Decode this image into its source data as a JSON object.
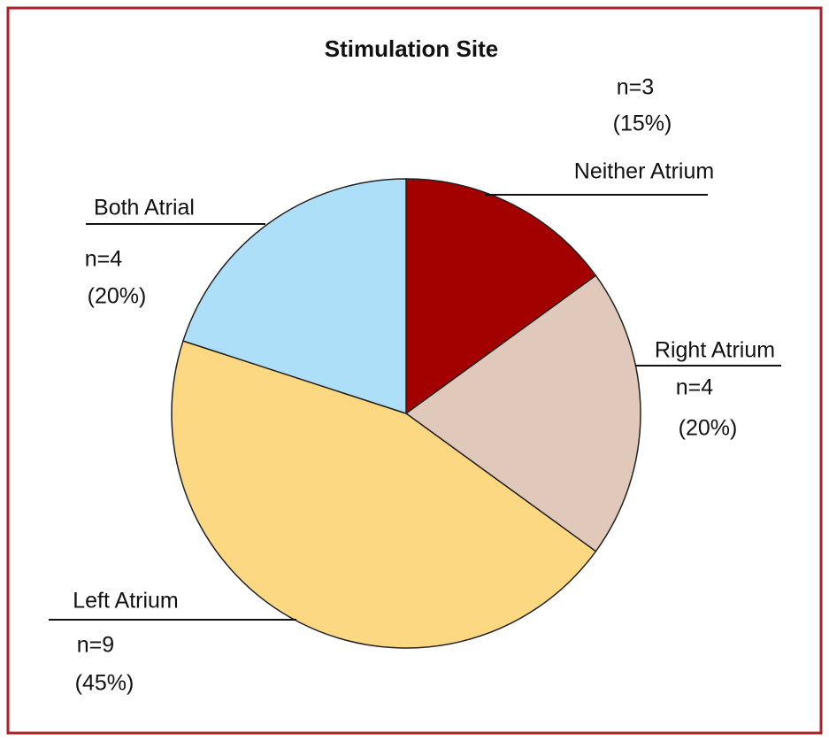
{
  "chart_data": {
    "type": "pie",
    "title": "Stimulation Site",
    "categories": [
      "Neither Atrium",
      "Right Atrium",
      "Left Atrium",
      "Both Atrial"
    ],
    "values": [
      3,
      4,
      9,
      4
    ],
    "value_labels": [
      "n=3",
      "n=4",
      "n=9",
      "n=4"
    ],
    "percent_labels": [
      "(15%)",
      "(20%)",
      "(45%)",
      "(20%)"
    ],
    "colors": [
      "#a30000",
      "#e0c8bb",
      "#fdd882",
      "#addff9"
    ]
  }
}
